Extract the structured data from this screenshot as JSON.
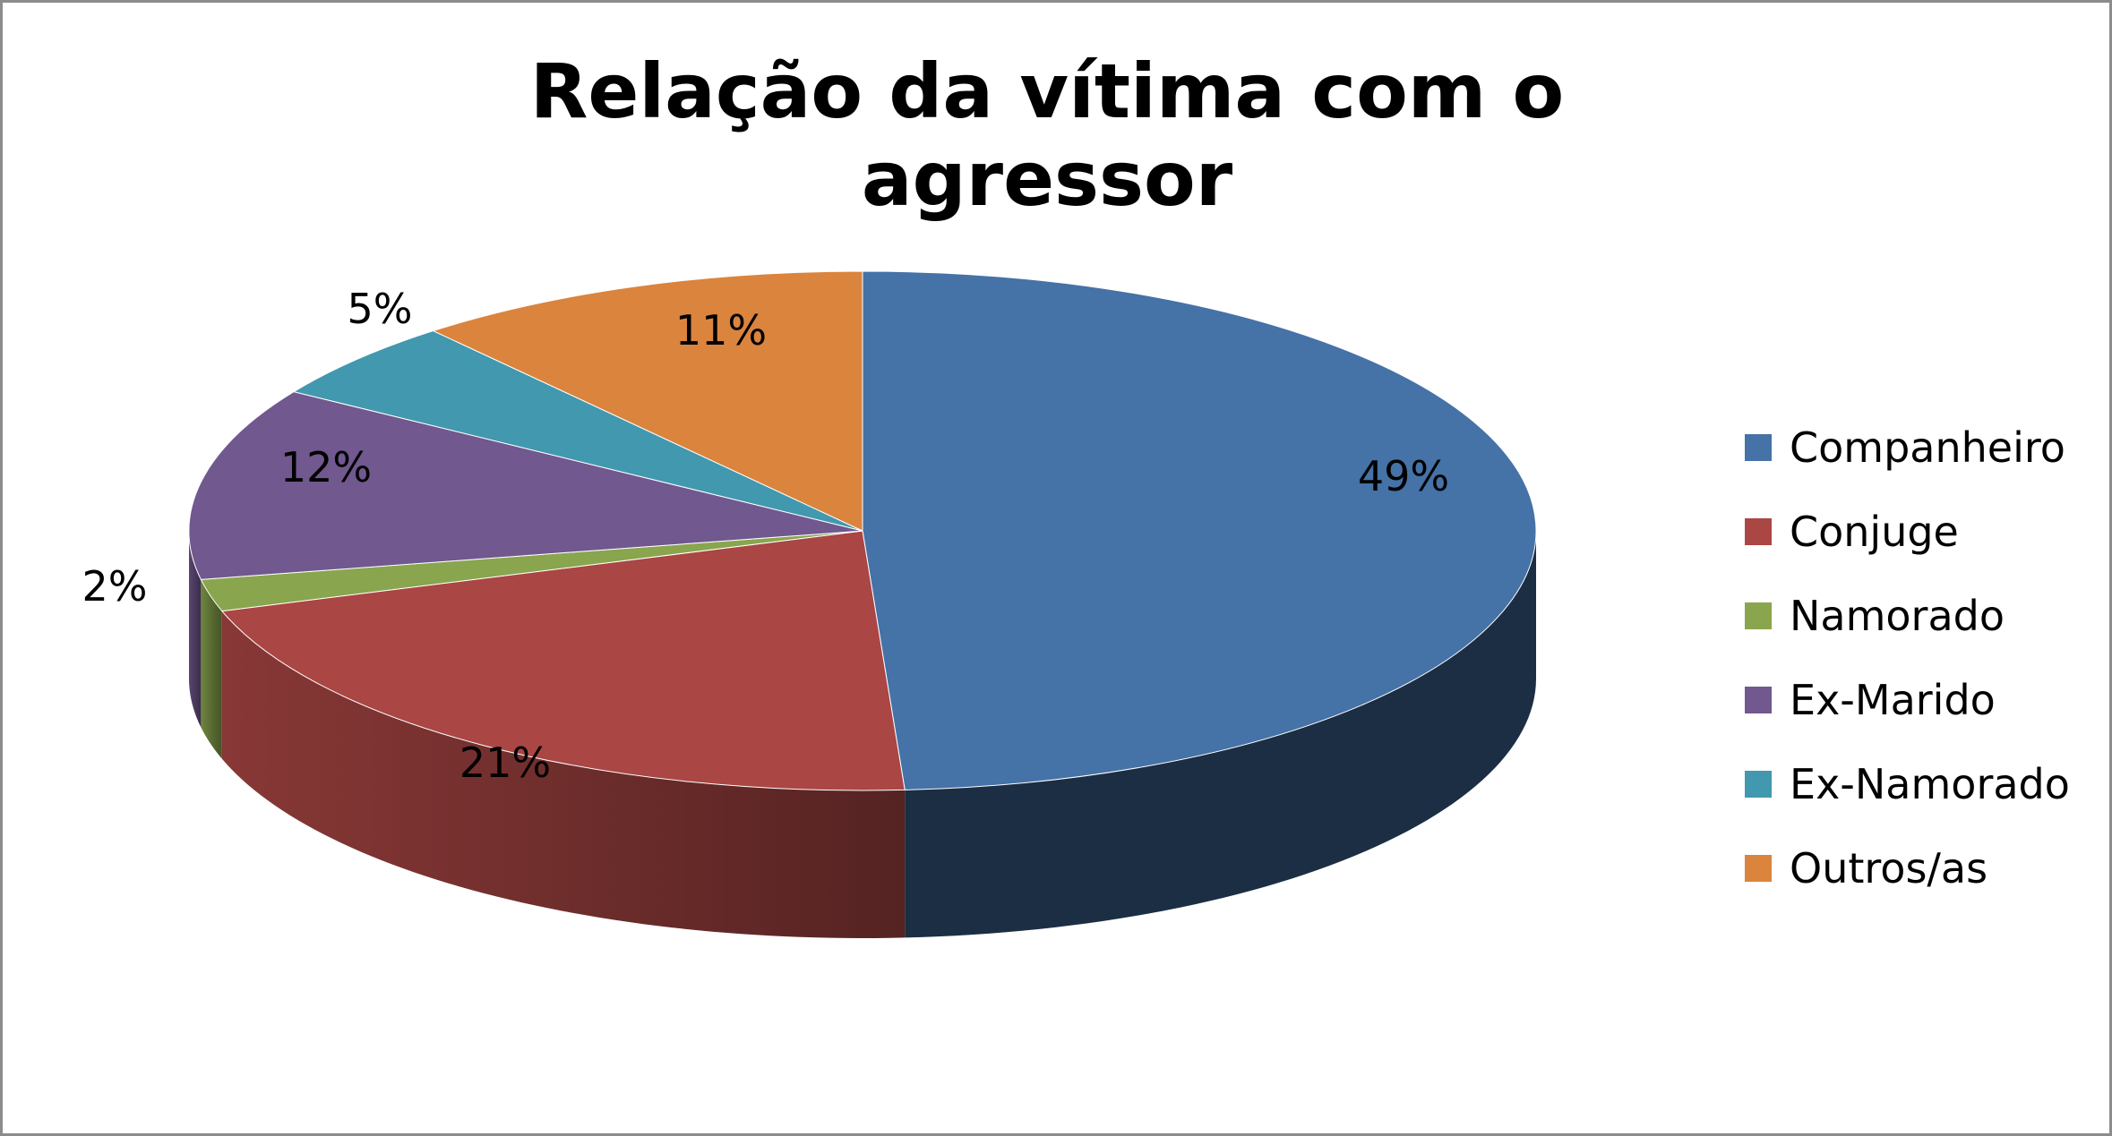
{
  "chart_data": {
    "type": "pie",
    "title": "Relação da vítima com o agressor",
    "three_d": true,
    "categories": [
      "Companheiro",
      "Conjuge",
      "Namorado",
      "Ex-Marido",
      "Ex-Namorado",
      "Outros/as"
    ],
    "values": [
      49,
      21,
      2,
      12,
      5,
      11
    ],
    "data_labels": [
      "49%",
      "21%",
      "2%",
      "12%",
      "5%",
      "11%"
    ],
    "colors": [
      "#4572A7",
      "#AA4643",
      "#89A54E",
      "#71588F",
      "#4198AF",
      "#DB843D"
    ],
    "legend_position": "right"
  }
}
